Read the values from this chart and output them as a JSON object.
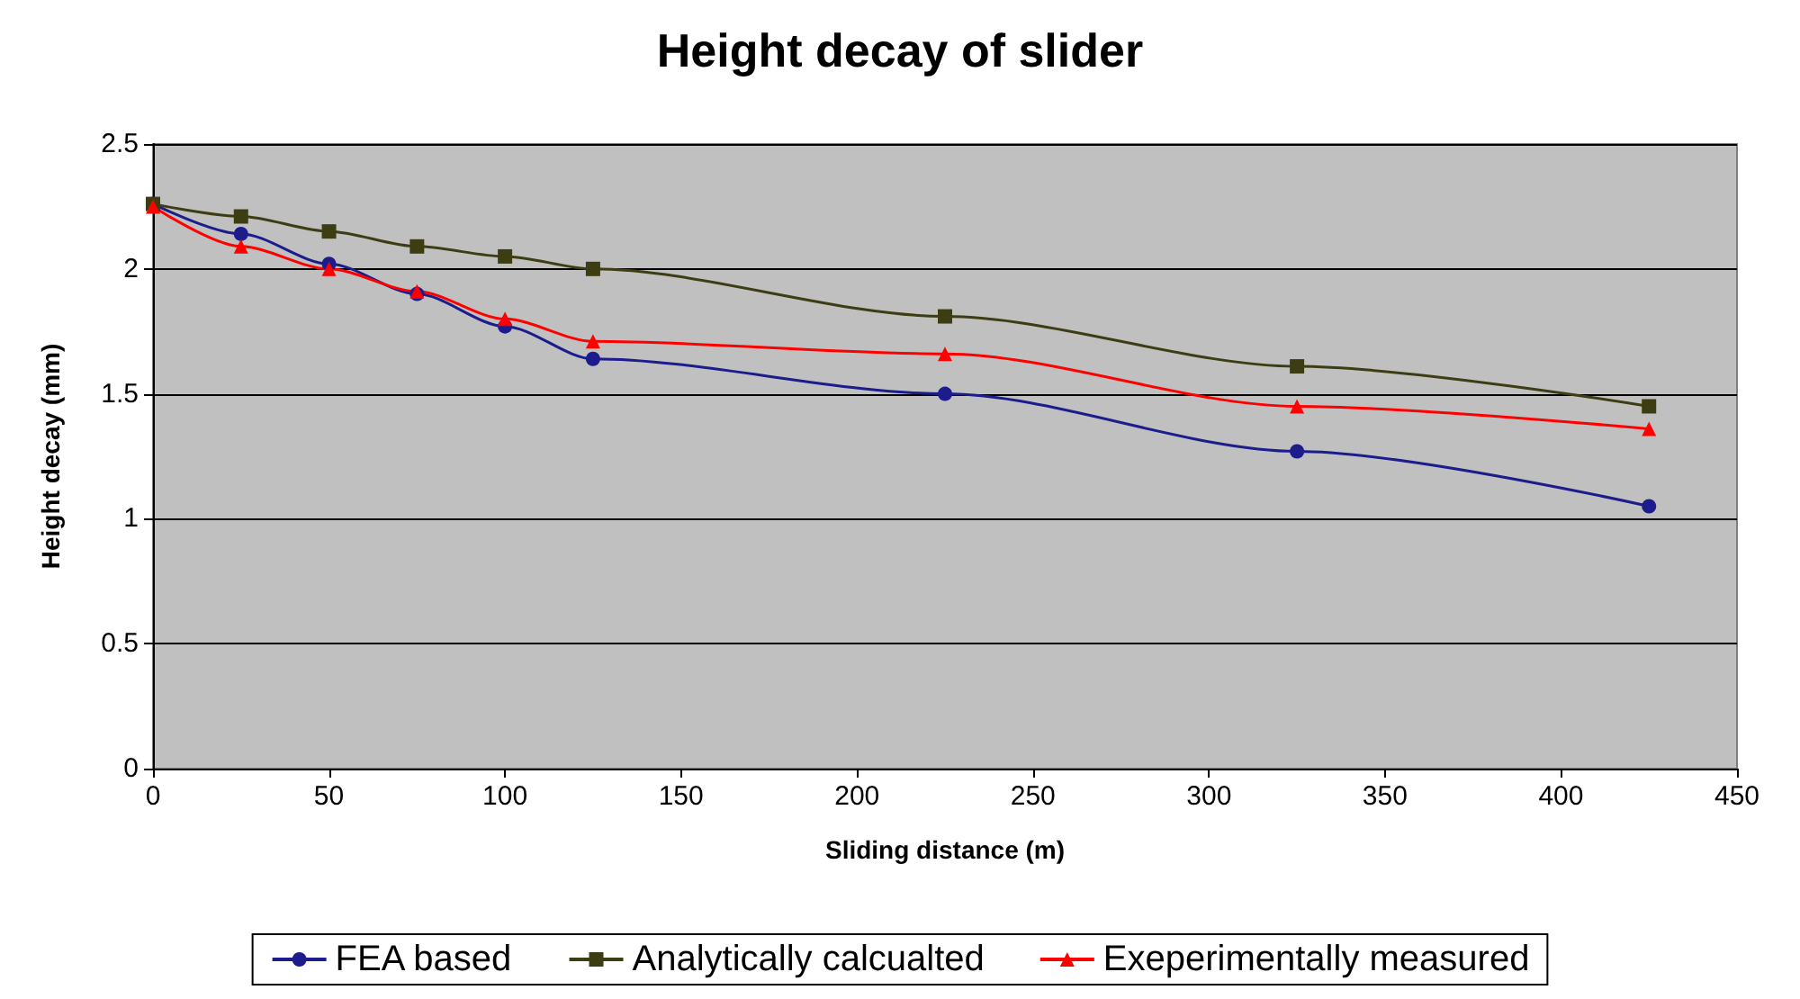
{
  "chart_data": {
    "type": "line",
    "title": "Height decay of slider",
    "xlabel": "Sliding distance (m)",
    "ylabel": "Height decay (mm)",
    "x": [
      0,
      25,
      50,
      75,
      100,
      125,
      225,
      325,
      425
    ],
    "series": [
      {
        "name": "FEA based",
        "color": "#1c1c8c",
        "marker": "circle",
        "values": [
          2.26,
          2.14,
          2.02,
          1.9,
          1.77,
          1.64,
          1.5,
          1.27,
          1.05
        ]
      },
      {
        "name": "Analytically calcualted",
        "color": "#3d3d14",
        "marker": "square",
        "values": [
          2.26,
          2.21,
          2.15,
          2.09,
          2.05,
          2.0,
          1.81,
          1.61,
          1.45
        ]
      },
      {
        "name": "Exeperimentally measured",
        "color": "#ff0000",
        "marker": "triangle",
        "values": [
          2.25,
          2.09,
          2.0,
          1.91,
          1.8,
          1.71,
          1.66,
          1.45,
          1.36
        ]
      }
    ],
    "xlim": [
      0,
      450
    ],
    "xticks": [
      0,
      50,
      100,
      150,
      200,
      250,
      300,
      350,
      400,
      450
    ],
    "ylim": [
      0,
      2.5
    ],
    "yticks": [
      0,
      0.5,
      1,
      1.5,
      2,
      2.5
    ],
    "grid": "y",
    "legend": "bottom"
  }
}
